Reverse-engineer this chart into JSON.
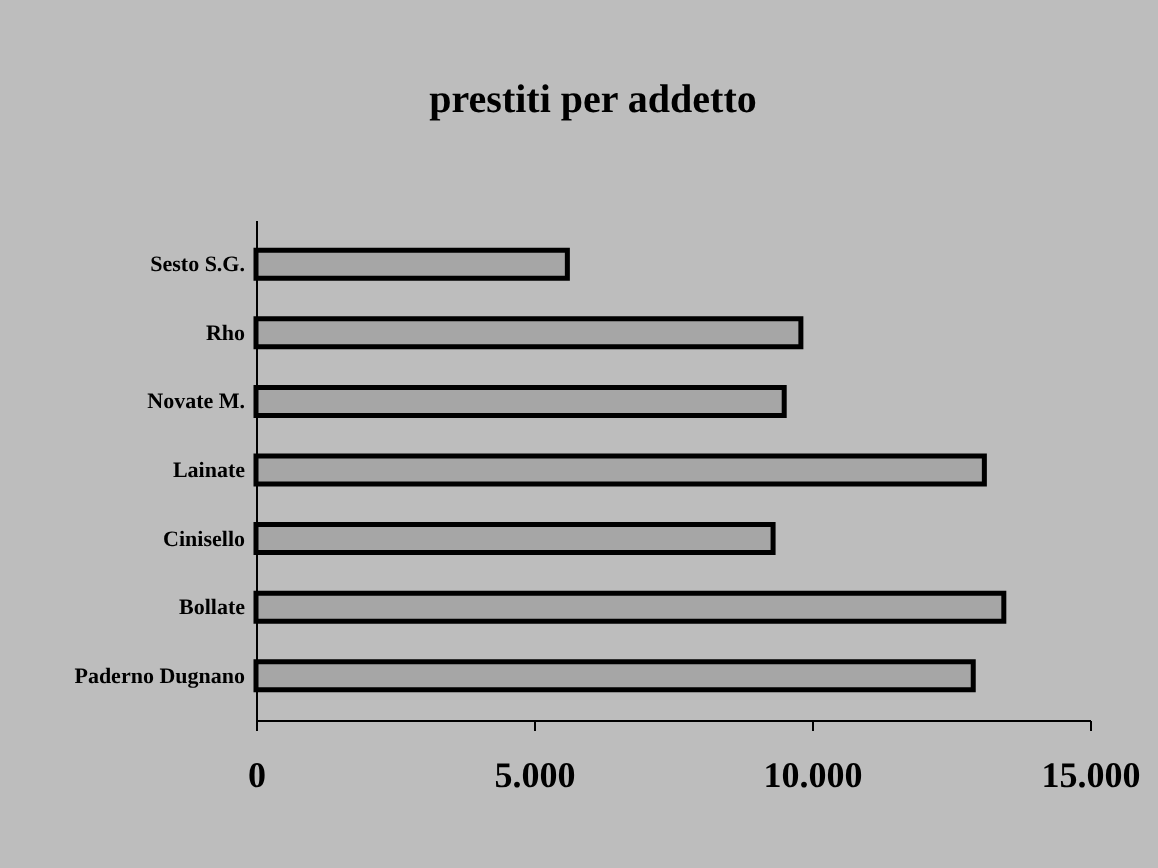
{
  "chart_data": {
    "type": "bar",
    "orientation": "horizontal",
    "title": "prestiti per addetto",
    "categories": [
      "Sesto S.G.",
      "Rho",
      "Novate M.",
      "Lainate",
      "Cinisello",
      "Bollate",
      "Paderno Dugnano"
    ],
    "values": [
      5600,
      9800,
      9500,
      13100,
      9300,
      13450,
      12900
    ],
    "color": "#a6a6a6",
    "xlim": [
      0,
      15000
    ],
    "xticks": [
      {
        "value": 0,
        "label": "0"
      },
      {
        "value": 5000,
        "label": "5.000"
      },
      {
        "value": 10000,
        "label": "10.000"
      },
      {
        "value": 15000,
        "label": "15.000"
      }
    ],
    "grid": false
  }
}
